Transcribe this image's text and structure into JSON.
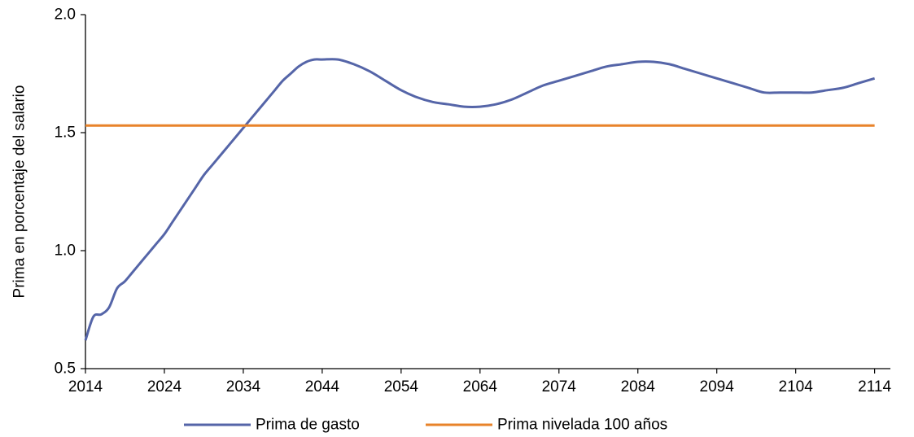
{
  "chart_data": {
    "type": "line",
    "title": "",
    "xlabel": "",
    "ylabel": "Prima en porcentaje del salario",
    "xlim": [
      2014,
      2116
    ],
    "ylim": [
      0.5,
      2.0
    ],
    "x_ticks": [
      2014,
      2024,
      2034,
      2044,
      2054,
      2064,
      2074,
      2084,
      2094,
      2104,
      2114
    ],
    "y_ticks": [
      "0.5",
      "1.0",
      "1.5",
      "2.0"
    ],
    "grid": false,
    "legend_position": "bottom",
    "series": [
      {
        "name": "Prima de gasto",
        "color": "#5565a8",
        "x": [
          2014,
          2015,
          2016,
          2017,
          2018,
          2019,
          2020,
          2021,
          2022,
          2023,
          2024,
          2025,
          2026,
          2027,
          2028,
          2029,
          2030,
          2031,
          2032,
          2033,
          2034,
          2035,
          2036,
          2037,
          2038,
          2039,
          2040,
          2041,
          2042,
          2043,
          2044,
          2046,
          2048,
          2050,
          2052,
          2054,
          2056,
          2058,
          2060,
          2062,
          2064,
          2066,
          2068,
          2070,
          2072,
          2074,
          2076,
          2078,
          2080,
          2082,
          2084,
          2086,
          2088,
          2090,
          2092,
          2094,
          2096,
          2098,
          2100,
          2102,
          2104,
          2106,
          2108,
          2110,
          2112,
          2114
        ],
        "values": [
          0.62,
          0.72,
          0.73,
          0.76,
          0.84,
          0.87,
          0.91,
          0.95,
          0.99,
          1.03,
          1.07,
          1.12,
          1.17,
          1.22,
          1.27,
          1.32,
          1.36,
          1.4,
          1.44,
          1.48,
          1.52,
          1.56,
          1.6,
          1.64,
          1.68,
          1.72,
          1.75,
          1.78,
          1.8,
          1.81,
          1.81,
          1.81,
          1.79,
          1.76,
          1.72,
          1.68,
          1.65,
          1.63,
          1.62,
          1.61,
          1.61,
          1.62,
          1.64,
          1.67,
          1.7,
          1.72,
          1.74,
          1.76,
          1.78,
          1.79,
          1.8,
          1.8,
          1.79,
          1.77,
          1.75,
          1.73,
          1.71,
          1.69,
          1.67,
          1.67,
          1.67,
          1.67,
          1.68,
          1.69,
          1.71,
          1.73
        ]
      },
      {
        "name": "Prima nivelada 100 años",
        "color": "#e8832a",
        "x": [
          2014,
          2114
        ],
        "values": [
          1.53,
          1.53
        ]
      }
    ]
  }
}
